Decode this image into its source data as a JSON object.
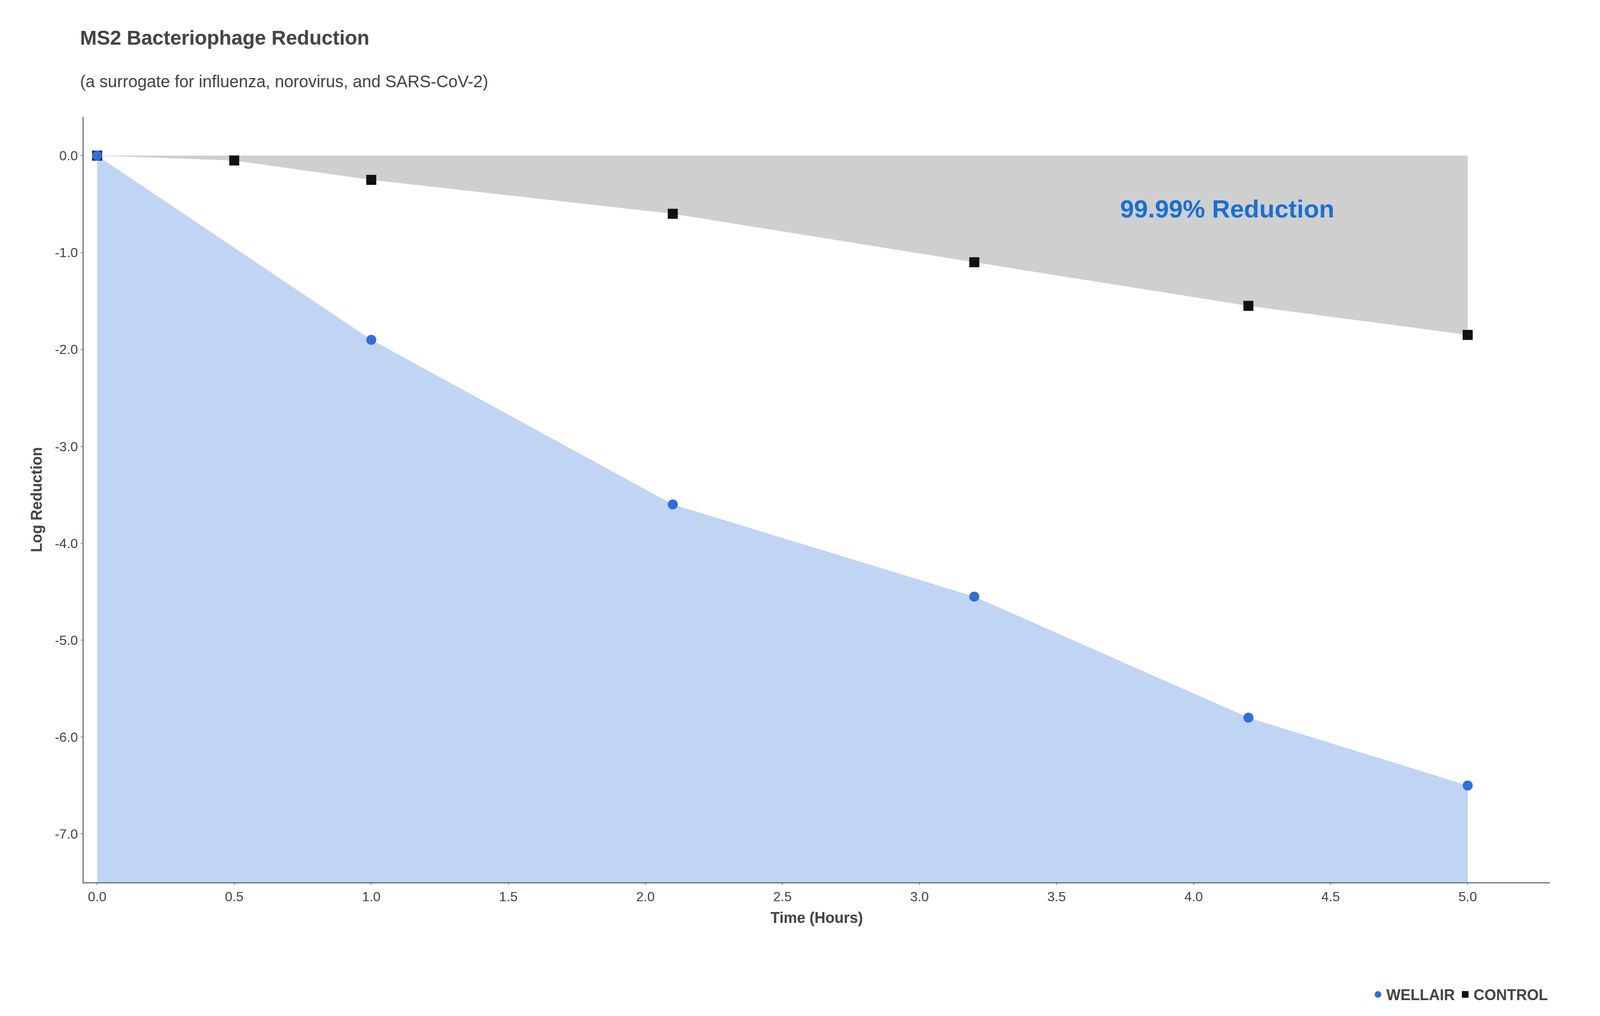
{
  "chart_data": {
    "type": "scatter",
    "title": "MS2 Bacteriophage Reduction",
    "subtitle": "(a surrogate for influenza, norovirus, and SARS-CoV-2)",
    "xlabel": "Time (Hours)",
    "ylabel": "Log Reduction",
    "series": [
      {
        "name": "CONTROL",
        "color": "#111111",
        "marker": "square",
        "x": [
          0.0,
          0.5,
          1.0,
          2.1,
          3.2,
          4.2,
          5.0
        ],
        "values": [
          0.0,
          -0.05,
          -0.25,
          -0.6,
          -1.1,
          -1.55,
          -1.85
        ]
      },
      {
        "name": "WELLAIR",
        "color": "#2e6fda",
        "marker": "circle",
        "x": [
          0.0,
          1.0,
          2.1,
          3.2,
          4.2,
          5.0
        ],
        "values": [
          0.0,
          -1.9,
          -3.6,
          -4.55,
          -5.8,
          -6.5
        ]
      }
    ],
    "annotations": [
      {
        "text": "99.99% Reduction",
        "color": "#1a6fd4"
      }
    ],
    "xlim": [
      -0.05,
      5.3
    ],
    "ylim": [
      -7.5,
      0.4
    ],
    "xticks": [
      {
        "value": 0.0,
        "label": "0.0"
      },
      0.5,
      {
        "value": 1.0,
        "label": "1.0"
      },
      1.5,
      {
        "value": 2.0,
        "label": "2.0"
      },
      2.5,
      {
        "value": 3.0,
        "label": "3.0"
      },
      3.5,
      {
        "value": 4.0,
        "label": "4.0"
      },
      4.5,
      {
        "value": 5.0,
        "label": "5.0"
      }
    ],
    "yticks": [
      {
        "value": 0.0,
        "label": "0.0"
      },
      {
        "value": -1.0,
        "label": "-1.0"
      },
      {
        "value": -2.0,
        "label": "-2.0"
      },
      {
        "value": -3.0,
        "label": "-3.0"
      },
      {
        "value": -4.0,
        "label": "-4.0"
      },
      {
        "value": -5.0,
        "label": "-5.0"
      },
      {
        "value": -6.0,
        "label": "-6.0"
      },
      {
        "value": -7.0,
        "label": "-7.0"
      }
    ],
    "grid": false,
    "legend": "lower right"
  }
}
